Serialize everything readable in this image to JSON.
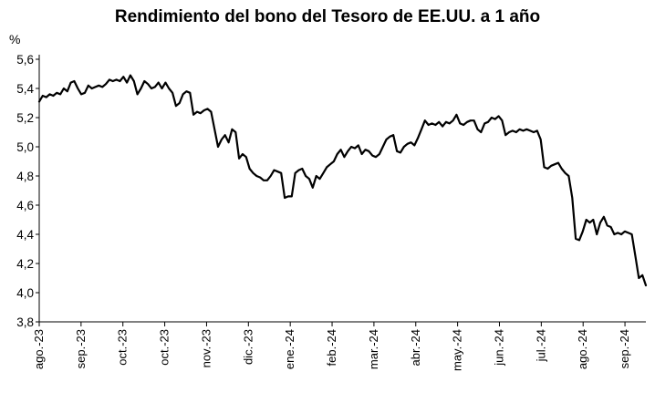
{
  "chart_data": {
    "type": "line",
    "title": "Rendimiento del bono del Tesoro de EE.UU. a 1 año",
    "ylabel": "%",
    "ylim": [
      3.8,
      5.6
    ],
    "yticks": [
      "3,8",
      "4,0",
      "4,2",
      "4,4",
      "4,6",
      "4,8",
      "5,0",
      "5,2",
      "5,4",
      "5,6"
    ],
    "xticks": [
      "ago.-23",
      "sep.-23",
      "oct.-23",
      "oct.-23",
      "nov.-23",
      "dic.-23",
      "ene.-24",
      "feb.-24",
      "mar.-24",
      "abr.-24",
      "may.-24",
      "jun.-24",
      "jul.-24",
      "ago.-24",
      "sep.-24"
    ],
    "grid": false,
    "legend": "none",
    "line_color": "#000000",
    "series": [
      {
        "values": [
          5.31,
          5.35,
          5.34,
          5.36,
          5.35,
          5.37,
          5.36,
          5.4,
          5.38,
          5.44,
          5.45,
          5.4,
          5.36,
          5.37,
          5.42,
          5.4,
          5.41,
          5.42,
          5.41,
          5.43,
          5.46,
          5.45,
          5.46,
          5.45,
          5.48,
          5.44,
          5.49,
          5.45,
          5.36,
          5.4,
          5.45,
          5.43,
          5.4,
          5.41,
          5.44,
          5.4,
          5.44,
          5.4,
          5.37,
          5.28,
          5.3,
          5.36,
          5.38,
          5.37,
          5.22,
          5.24,
          5.23,
          5.25,
          5.26,
          5.24,
          5.12,
          5.0,
          5.05,
          5.08,
          5.03,
          5.12,
          5.1,
          4.92,
          4.95,
          4.93,
          4.85,
          4.82,
          4.8,
          4.79,
          4.77,
          4.77,
          4.8,
          4.84,
          4.83,
          4.82,
          4.65,
          4.66,
          4.66,
          4.82,
          4.84,
          4.85,
          4.8,
          4.78,
          4.72,
          4.8,
          4.78,
          4.82,
          4.86,
          4.88,
          4.9,
          4.95,
          4.98,
          4.93,
          4.97,
          5.0,
          4.99,
          5.01,
          4.95,
          4.98,
          4.97,
          4.94,
          4.93,
          4.95,
          5.0,
          5.05,
          5.07,
          5.08,
          4.97,
          4.96,
          5.0,
          5.02,
          5.03,
          5.01,
          5.06,
          5.12,
          5.18,
          5.15,
          5.16,
          5.15,
          5.17,
          5.14,
          5.17,
          5.16,
          5.18,
          5.22,
          5.16,
          5.15,
          5.17,
          5.18,
          5.18,
          5.12,
          5.1,
          5.16,
          5.17,
          5.2,
          5.19,
          5.21,
          5.18,
          5.08,
          5.1,
          5.11,
          5.1,
          5.12,
          5.11,
          5.12,
          5.11,
          5.1,
          5.11,
          5.05,
          4.86,
          4.85,
          4.87,
          4.88,
          4.89,
          4.85,
          4.82,
          4.8,
          4.65,
          4.37,
          4.36,
          4.42,
          4.5,
          4.48,
          4.5,
          4.4,
          4.48,
          4.52,
          4.46,
          4.45,
          4.4,
          4.41,
          4.4,
          4.42,
          4.41,
          4.4,
          4.25,
          4.1,
          4.12,
          4.05
        ]
      }
    ]
  }
}
